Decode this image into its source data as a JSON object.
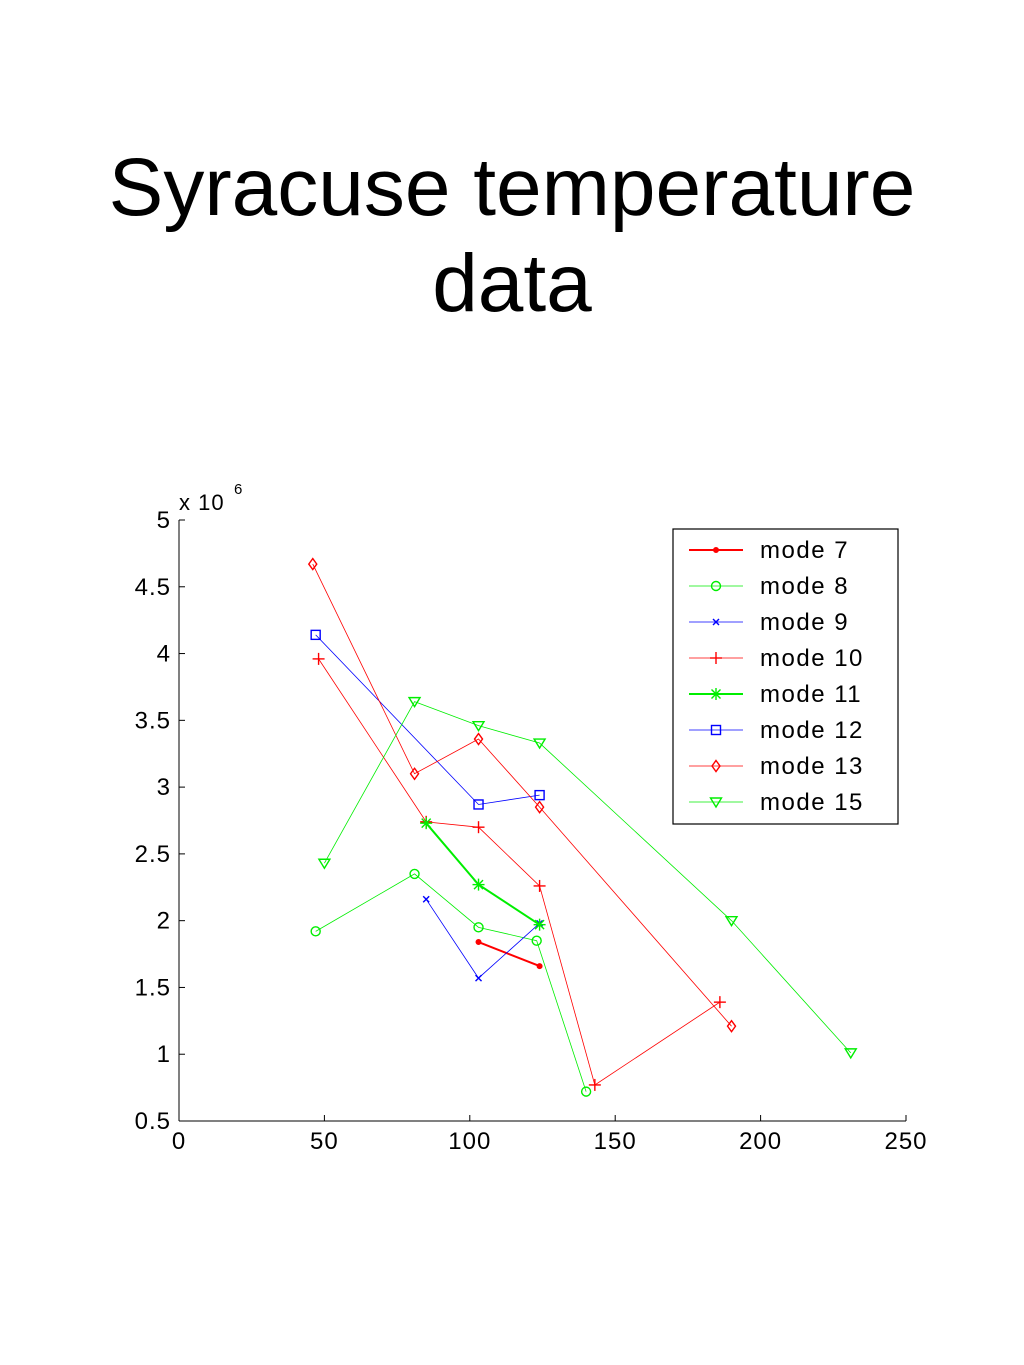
{
  "title_lines": [
    "Syracuse temperature",
    "data"
  ],
  "chart_data": {
    "type": "line",
    "title": "Syracuse temperature data",
    "xlabel": "",
    "ylabel": "",
    "xlim": [
      0,
      250
    ],
    "ylim": [
      0.5,
      5
    ],
    "x_ticks": [
      0,
      50,
      100,
      150,
      200,
      250
    ],
    "y_ticks": [
      0.5,
      1,
      1.5,
      2,
      2.5,
      3,
      3.5,
      4,
      4.5,
      5
    ],
    "x_tick_labels": [
      "0",
      "50",
      "100",
      "150",
      "200",
      "250"
    ],
    "y_tick_labels": [
      "0.5",
      "1",
      "1.5",
      "2",
      "2.5",
      "3",
      "3.5",
      "4",
      "4.5",
      "5"
    ],
    "y_multiplier": {
      "base": "x 10",
      "exponent": "6"
    },
    "grid": false,
    "legend_position": "top-right",
    "series": [
      {
        "name": "mode 7",
        "color": "#ff0000",
        "marker": "dot",
        "bold": true,
        "points": [
          [
            103,
            1.84
          ],
          [
            124,
            1.66
          ]
        ]
      },
      {
        "name": "mode 8",
        "color": "#00ee00",
        "marker": "circle",
        "bold": false,
        "points": [
          [
            47,
            1.92
          ],
          [
            81,
            2.35
          ],
          [
            103,
            1.95
          ],
          [
            123,
            1.85
          ],
          [
            140,
            0.72
          ]
        ]
      },
      {
        "name": "mode 9",
        "color": "#0000ff",
        "marker": "x",
        "bold": false,
        "points": [
          [
            85,
            2.16
          ],
          [
            103,
            1.57
          ],
          [
            124,
            1.98
          ]
        ]
      },
      {
        "name": "mode 10",
        "color": "#ff0000",
        "marker": "plus",
        "bold": false,
        "points": [
          [
            48,
            3.96
          ],
          [
            85,
            2.74
          ],
          [
            103,
            2.7
          ],
          [
            124,
            2.26
          ],
          [
            143,
            0.77
          ],
          [
            186,
            1.39
          ]
        ]
      },
      {
        "name": "mode 11",
        "color": "#00ee00",
        "marker": "star",
        "bold": true,
        "points": [
          [
            85,
            2.73
          ],
          [
            103,
            2.27
          ],
          [
            124,
            1.97
          ]
        ]
      },
      {
        "name": "mode 12",
        "color": "#0000ff",
        "marker": "square",
        "bold": false,
        "points": [
          [
            47,
            4.14
          ],
          [
            103,
            2.87
          ],
          [
            124,
            2.94
          ]
        ]
      },
      {
        "name": "mode 13",
        "color": "#ff0000",
        "marker": "diamond",
        "bold": false,
        "points": [
          [
            46,
            4.67
          ],
          [
            81,
            3.1
          ],
          [
            103,
            3.36
          ],
          [
            124,
            2.85
          ],
          [
            190,
            1.21
          ]
        ]
      },
      {
        "name": "mode 15",
        "color": "#00ee00",
        "marker": "triangle-down",
        "bold": false,
        "points": [
          [
            50,
            2.43
          ],
          [
            81,
            3.64
          ],
          [
            103,
            3.46
          ],
          [
            124,
            3.33
          ],
          [
            190,
            2.0
          ],
          [
            231,
            1.01
          ]
        ]
      }
    ]
  }
}
